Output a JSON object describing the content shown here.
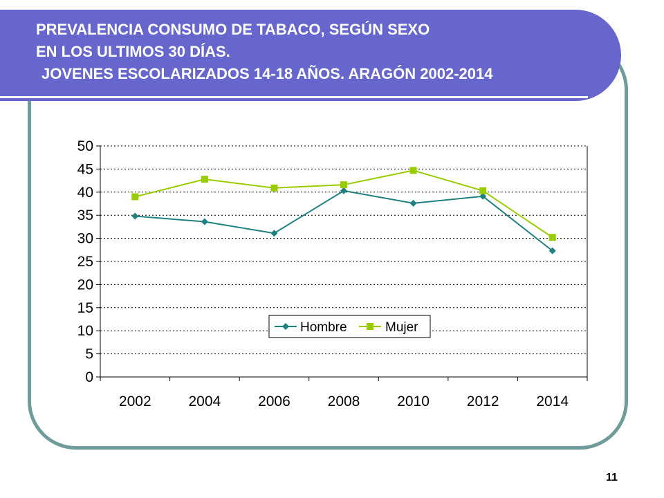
{
  "slide": {
    "title_lines": [
      "PREVALENCIA CONSUMO DE TABACO, SEGÚN SEXO",
      "EN LOS ULTIMOS 30 DÍAS.",
      "JOVENES ESCOLARIZADOS 14-18 AÑOS. ARAGÓN 2002-2014"
    ],
    "page_number": "11",
    "colors": {
      "banner": "#6666cc",
      "frame": "#6f9c9a",
      "hombre": "#1f8080",
      "mujer": "#99cc00"
    }
  },
  "chart_data": {
    "type": "line",
    "title": "",
    "xlabel": "",
    "ylabel": "",
    "categories": [
      "2002",
      "2004",
      "2006",
      "2008",
      "2010",
      "2012",
      "2014"
    ],
    "ylim": [
      0,
      50
    ],
    "yticks": [
      "0",
      "5",
      "10",
      "15",
      "20",
      "25",
      "30",
      "35",
      "40",
      "45",
      "50"
    ],
    "grid": "horizontal dotted",
    "legend_position": "center, inside plot",
    "series": [
      {
        "name": "Hombre",
        "marker": "diamond",
        "color": "#1f8080",
        "values": [
          34.8,
          33.6,
          31.1,
          40.3,
          37.6,
          39.1,
          27.3
        ]
      },
      {
        "name": "Mujer",
        "marker": "square",
        "color": "#99cc00",
        "values": [
          39.0,
          42.8,
          40.9,
          41.6,
          44.7,
          40.3,
          30.2
        ]
      }
    ]
  }
}
